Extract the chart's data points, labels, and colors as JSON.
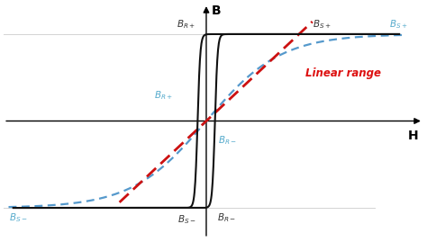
{
  "bg_color": "#ffffff",
  "hysteresis_color": "#111111",
  "blue_curve_color": "#5599cc",
  "red_line_color": "#cc1111",
  "linear_range_text": "Linear range",
  "linear_range_color": "#dd1111",
  "label_color_black": "#333333",
  "label_color_blue": "#55aacc",
  "xlabel": "H",
  "ylabel": "B",
  "xlim": [
    -4.2,
    4.5
  ],
  "ylim": [
    -1.35,
    1.35
  ],
  "Bs": 1.0,
  "Hc": 0.18,
  "k_hyst": 18.0,
  "blue_k": 0.65,
  "red_slope": 0.52,
  "red_h_start": -1.8,
  "red_h_end": 2.2
}
